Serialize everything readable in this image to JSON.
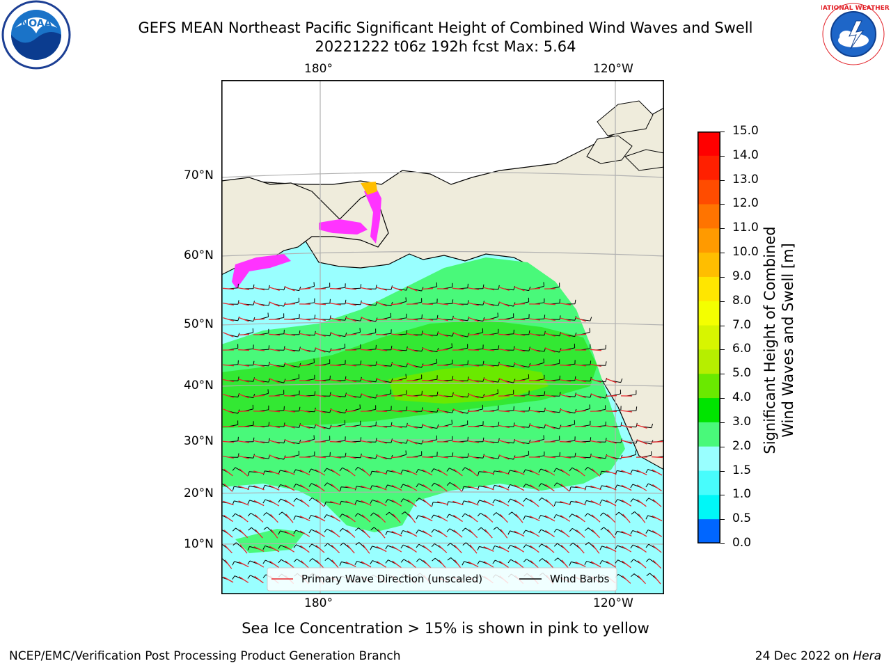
{
  "header": {
    "title_line1": "GEFS MEAN Northeast Pacific Significant Height of Combined Wind Waves and Swell",
    "title_line2": "20221222 t06z 192h fcst   Max: 5.64"
  },
  "logos": {
    "left_name": "NOAA",
    "right_name": "NATIONAL WEATHER SERVICE"
  },
  "map": {
    "lon_labels_top": [
      "180°",
      "120°W"
    ],
    "lon_labels_bottom": [
      "180°",
      "120°W"
    ],
    "lat_labels": [
      "70°N",
      "60°N",
      "50°N",
      "40°N",
      "30°N",
      "20°N",
      "10°N"
    ],
    "legend": {
      "wave_dir_label": "Primary Wave Direction (unscaled)",
      "wind_barbs_label": "Wind Barbs",
      "wave_dir_color": "#e8262a",
      "wind_barbs_color": "#000000"
    },
    "colors": {
      "land": "#efecdc",
      "sea_low": "#99ffff",
      "sea_mid": "#49f97a",
      "sea_high": "#33e833",
      "ice": "#ff33ff"
    }
  },
  "colorbar": {
    "label_line1": "Significant Height of Combined",
    "label_line2": "Wind Waves and Swell [m]",
    "ticks": [
      "15.0",
      "14.0",
      "13.0",
      "12.0",
      "11.0",
      "10.0",
      "9.0",
      "8.0",
      "7.0",
      "6.0",
      "5.0",
      "4.0",
      "3.0",
      "2.0",
      "1.5",
      "1.0",
      "0.5",
      "0.0"
    ],
    "colors": [
      "#ff0000",
      "#ff2000",
      "#ff4c00",
      "#ff7400",
      "#ff9a00",
      "#ffbe00",
      "#ffe600",
      "#f4ff00",
      "#d7f500",
      "#b6ee00",
      "#6ae900",
      "#00e400",
      "#49f97a",
      "#99ffff",
      "#48fcfc",
      "#00f7f7",
      "#0066ff",
      "#0000ff"
    ]
  },
  "footer": {
    "ice_note": "Sea Ice Concentration > 15% is shown in pink to yellow",
    "credit": "NCEP/EMC/Verification Post Processing Product Generation Branch",
    "date_text": "24 Dec 2022 on ",
    "machine": "Hera"
  }
}
